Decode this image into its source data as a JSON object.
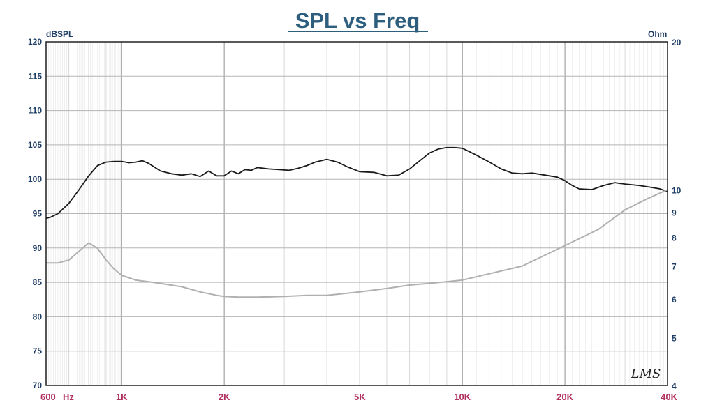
{
  "chart_data": {
    "type": "line",
    "title": "SPL vs Freq",
    "xscale": "log",
    "xlim": [
      600,
      40000
    ],
    "x_ticks": [
      {
        "value": 600,
        "label": "600"
      },
      {
        "value": 1000,
        "label": "1K"
      },
      {
        "value": 2000,
        "label": "2K"
      },
      {
        "value": 5000,
        "label": "5K"
      },
      {
        "value": 10000,
        "label": "10K"
      },
      {
        "value": 20000,
        "label": "20K"
      },
      {
        "value": 40000,
        "label": "40K"
      }
    ],
    "x_unit_label": "Hz",
    "y_left": {
      "label": "dBSPL",
      "lim": [
        70,
        120
      ],
      "ticks": [
        70,
        75,
        80,
        85,
        90,
        95,
        100,
        105,
        110,
        115,
        120
      ]
    },
    "y_right": {
      "label": "Ohm",
      "scale": "log",
      "lim": [
        4,
        20
      ],
      "ticks": [
        4,
        5,
        6,
        7,
        8,
        9,
        10,
        20
      ]
    },
    "grid": true,
    "watermark": "LMS",
    "series": [
      {
        "axis": "left",
        "color": "#1a1a1a",
        "x": [
          600,
          620,
          650,
          700,
          750,
          800,
          850,
          900,
          950,
          1000,
          1050,
          1100,
          1150,
          1200,
          1300,
          1400,
          1500,
          1600,
          1700,
          1800,
          1900,
          2000,
          2100,
          2200,
          2300,
          2400,
          2500,
          2700,
          2900,
          3100,
          3300,
          3500,
          3700,
          4000,
          4300,
          4600,
          5000,
          5500,
          6000,
          6500,
          7000,
          7500,
          8000,
          8500,
          9000,
          9500,
          10000,
          10500,
          11000,
          12000,
          13000,
          14000,
          15000,
          16000,
          17000,
          18000,
          19000,
          20000,
          21000,
          22000,
          24000,
          26000,
          28000,
          30000,
          33000,
          36000,
          38000,
          40000
        ],
        "y": [
          94.3,
          94.5,
          95,
          96.5,
          98.5,
          100.5,
          102,
          102.5,
          102.6,
          102.6,
          102.4,
          102.5,
          102.7,
          102.3,
          101.2,
          100.8,
          100.6,
          100.8,
          100.4,
          101.2,
          100.5,
          100.5,
          101.2,
          100.8,
          101.4,
          101.3,
          101.7,
          101.5,
          101.4,
          101.3,
          101.6,
          102,
          102.5,
          102.9,
          102.5,
          101.8,
          101.1,
          101,
          100.5,
          100.6,
          101.5,
          102.7,
          103.8,
          104.4,
          104.6,
          104.6,
          104.5,
          104,
          103.5,
          102.5,
          101.5,
          100.9,
          100.8,
          100.9,
          100.7,
          100.5,
          100.3,
          99.8,
          99.1,
          98.6,
          98.5,
          99.1,
          99.5,
          99.3,
          99.1,
          98.8,
          98.6,
          98.2
        ]
      },
      {
        "axis": "right",
        "color": "#b0b0b0",
        "x": [
          600,
          650,
          700,
          750,
          800,
          850,
          900,
          950,
          1000,
          1100,
          1200,
          1300,
          1500,
          1700,
          1900,
          2000,
          2200,
          2500,
          3000,
          3500,
          4000,
          5000,
          6000,
          7000,
          8000,
          10000,
          12000,
          15000,
          20000,
          25000,
          30000,
          35000,
          40000
        ],
        "y": [
          7.1,
          7.1,
          7.2,
          7.5,
          7.8,
          7.6,
          7.2,
          6.9,
          6.7,
          6.55,
          6.5,
          6.45,
          6.35,
          6.2,
          6.1,
          6.07,
          6.05,
          6.05,
          6.07,
          6.1,
          6.1,
          6.2,
          6.3,
          6.4,
          6.45,
          6.55,
          6.75,
          7.0,
          7.7,
          8.3,
          9.1,
          9.6,
          10.0
        ]
      }
    ]
  }
}
